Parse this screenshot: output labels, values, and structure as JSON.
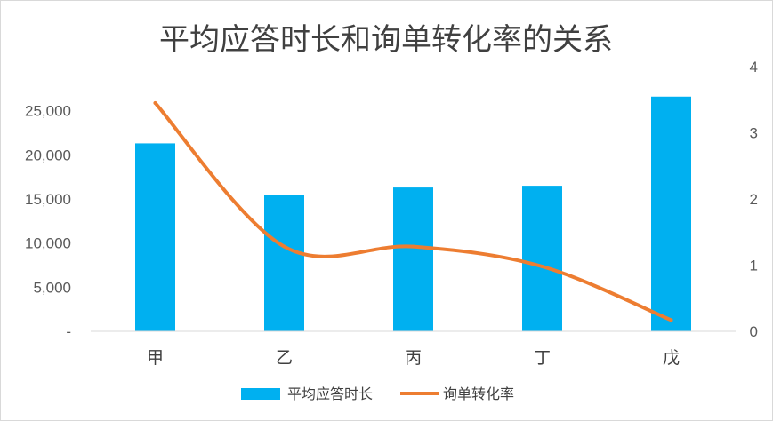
{
  "chart_data": {
    "type": "bar+line",
    "title": "平均应答时长和询单转化率的关系",
    "categories": [
      "甲",
      "乙",
      "丙",
      "丁",
      "戊"
    ],
    "series": [
      {
        "name": "平均应答时长",
        "type": "bar",
        "axis": "left",
        "color": "#00b0f0",
        "values": [
          21300,
          15500,
          16300,
          16500,
          26600
        ]
      },
      {
        "name": "询单转化率",
        "type": "line",
        "axis": "right",
        "color": "#ed7d31",
        "smooth": true,
        "values": [
          3.45,
          1.28,
          1.28,
          0.98,
          0.17
        ]
      }
    ],
    "y_left": {
      "ylim": [
        0,
        30000
      ],
      "ticks": [
        0,
        5000,
        10000,
        15000,
        20000,
        25000
      ],
      "tick_labels": [
        "-",
        "5,000",
        "10,000",
        "15,000",
        "20,000",
        "25,000"
      ]
    },
    "y_right": {
      "ylim": [
        0,
        4
      ],
      "ticks": [
        0,
        1,
        2,
        3,
        4
      ],
      "tick_labels": [
        "0",
        "1",
        "2",
        "3",
        "4"
      ]
    },
    "grid": false,
    "legend": "bottom"
  }
}
